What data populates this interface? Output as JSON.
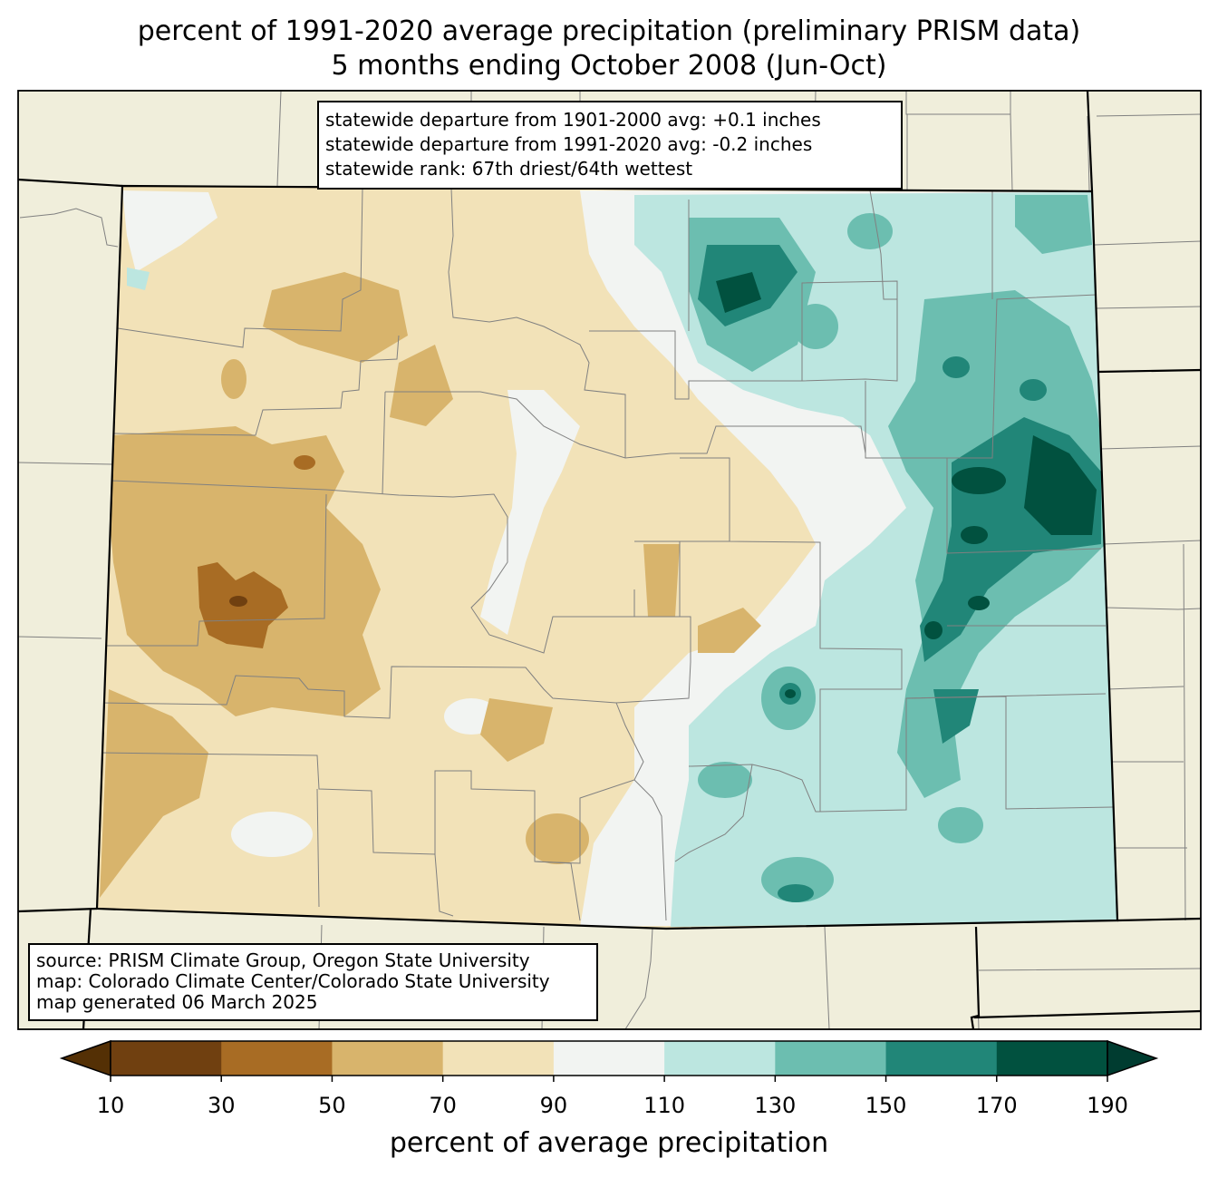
{
  "title": {
    "line1": "percent of 1991-2020 average precipitation (preliminary PRISM data)",
    "line2": "5 months ending October 2008 (Jun-Oct)"
  },
  "stats_box": {
    "line1": "statewide departure from 1901-2000 avg: +0.1 inches",
    "line2": "statewide departure from 1991-2020 avg: -0.2 inches",
    "line3": "statewide rank: 67th driest/64th wettest"
  },
  "source_box": {
    "line1": "source: PRISM Climate Group, Oregon State University",
    "line2": "map: Colorado Climate Center/Colorado State University",
    "line3": "map generated 06 March 2025"
  },
  "colorbar": {
    "label": "percent of average precipitation",
    "ticks": [
      "10",
      "30",
      "50",
      "70",
      "90",
      "110",
      "130",
      "150",
      "170",
      "190"
    ],
    "bins": [
      {
        "range": "10-30",
        "color": "#704010"
      },
      {
        "range": "30-50",
        "color": "#a86c24"
      },
      {
        "range": "50-70",
        "color": "#d8b46c"
      },
      {
        "range": "70-90",
        "color": "#f2e2b8"
      },
      {
        "range": "90-110",
        "color": "#f2f4f2"
      },
      {
        "range": "110-130",
        "color": "#bce6e0"
      },
      {
        "range": "130-150",
        "color": "#6cbeb0"
      },
      {
        "range": "150-170",
        "color": "#218678"
      },
      {
        "range": "170-190",
        "color": "#01513f"
      }
    ],
    "under_color": "#543005",
    "over_color": "#003c30"
  },
  "colors": {
    "land": "#f0eedb",
    "state_border": "#000000",
    "county_border": "#808080"
  }
}
